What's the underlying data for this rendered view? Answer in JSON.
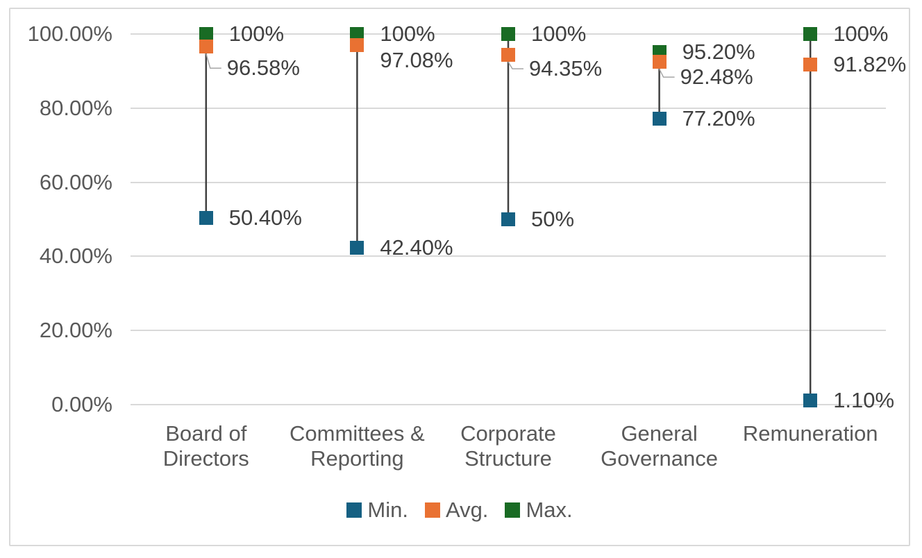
{
  "chart_data": {
    "type": "scatter",
    "subtype": "high-low (stock) chart: Min/Avg/Max markers per category with hi-lo lines",
    "title": "",
    "xlabel": "",
    "ylabel": "",
    "grid": true,
    "categories": [
      "Board of Directors",
      "Committees & Reporting",
      "Corporate Structure",
      "General Governance",
      "Remuneration"
    ],
    "categories_wrapped": [
      "Board of\nDirectors",
      "Committees &\nReporting",
      "Corporate\nStructure",
      "General\nGovernance",
      "Remuneration"
    ],
    "series": [
      {
        "name": "Min.",
        "color": "#156082",
        "values": [
          50.4,
          42.4,
          50,
          77.2,
          1.1
        ],
        "labels": [
          "50.40%",
          "42.40%",
          "50%",
          "77.20%",
          "1.10%"
        ]
      },
      {
        "name": "Avg.",
        "color": "#E97132",
        "values": [
          96.58,
          97.08,
          94.35,
          92.48,
          91.82
        ],
        "labels": [
          "96.58%",
          "97.08%",
          "94.35%",
          "92.48%",
          "91.82%"
        ]
      },
      {
        "name": "Max.",
        "color": "#196B24",
        "values": [
          100,
          100,
          100,
          95.2,
          100
        ],
        "labels": [
          "100%",
          "100%",
          "100%",
          "95.20%",
          "100%"
        ]
      }
    ],
    "y_axis": {
      "min": 0,
      "max": 100,
      "step": 20,
      "tick_values": [
        100,
        80,
        60,
        40,
        20,
        0
      ],
      "tick_labels": [
        "100.00%",
        "80.00%",
        "60.00%",
        "40.00%",
        "20.00%",
        "0.00%"
      ]
    },
    "legend": {
      "position": "bottom",
      "items": [
        "Min.",
        "Avg.",
        "Max."
      ]
    },
    "avg_label_offsets": [
      {
        "dy": 31,
        "leader": true
      },
      {
        "dy": 22,
        "leader": false
      },
      {
        "dy": 20,
        "leader": true
      },
      {
        "dy": 22,
        "leader": true
      },
      {
        "dy": 0,
        "leader": false
      }
    ],
    "styles": {
      "grid_color": "#D9D9D9",
      "hilo_line_color": "#404040",
      "leader_line_color": "#A6A6A6",
      "axis_text_color": "#595959",
      "data_label_color": "#404040",
      "frame_border_color": "#D9D9D9",
      "background": "#FFFFFF"
    }
  }
}
